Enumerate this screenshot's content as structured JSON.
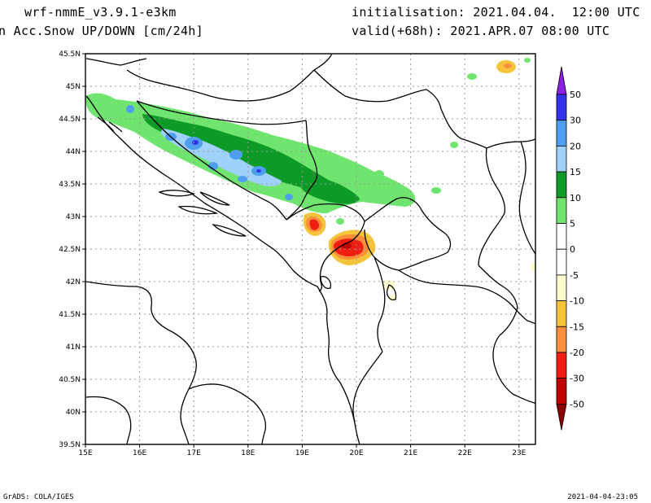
{
  "header": {
    "model": "wrf-nmmE_v3.9.1-e3km",
    "field": "n Acc.Snow UP/DOWN [cm/24h]",
    "init": "initialisation: 2021.04.04.  12:00 UTC",
    "valid": "valid(+68h): 2021.APR.07 08:00 UTC"
  },
  "footer": {
    "credit": "GrADS: COLA/IGES",
    "timestamp": "2021-04-04-23:05"
  },
  "map": {
    "lon_labels": [
      "15E",
      "16E",
      "17E",
      "18E",
      "19E",
      "20E",
      "21E",
      "22E",
      "23E"
    ],
    "lat_labels": [
      "45.5N",
      "45N",
      "44.5N",
      "44N",
      "43.5N",
      "43N",
      "42.5N",
      "42N",
      "41.5N",
      "41N",
      "40.5N",
      "40N",
      "39.5N"
    ]
  },
  "legend": {
    "bins": [
      {
        "label": "50",
        "color": "#8a1fe6"
      },
      {
        "label": "30",
        "color": "#3333ee"
      },
      {
        "label": "20",
        "color": "#4f9ff0"
      },
      {
        "label": "15",
        "color": "#9fd2fa"
      },
      {
        "label": "10",
        "color": "#0e9a26"
      },
      {
        "label": "5",
        "color": "#6fe56f"
      },
      {
        "label": "0",
        "color": "#ffffff"
      },
      {
        "label": "-5",
        "color": "#ffffff"
      },
      {
        "label": "-10",
        "color": "#fefcce"
      },
      {
        "label": "-15",
        "color": "#f5c43a"
      },
      {
        "label": "-20",
        "color": "#f98f3a"
      },
      {
        "label": "-30",
        "color": "#f01e12"
      },
      {
        "label": "-50",
        "color": "#c00000"
      }
    ],
    "bottom_color": "#8b0000"
  }
}
